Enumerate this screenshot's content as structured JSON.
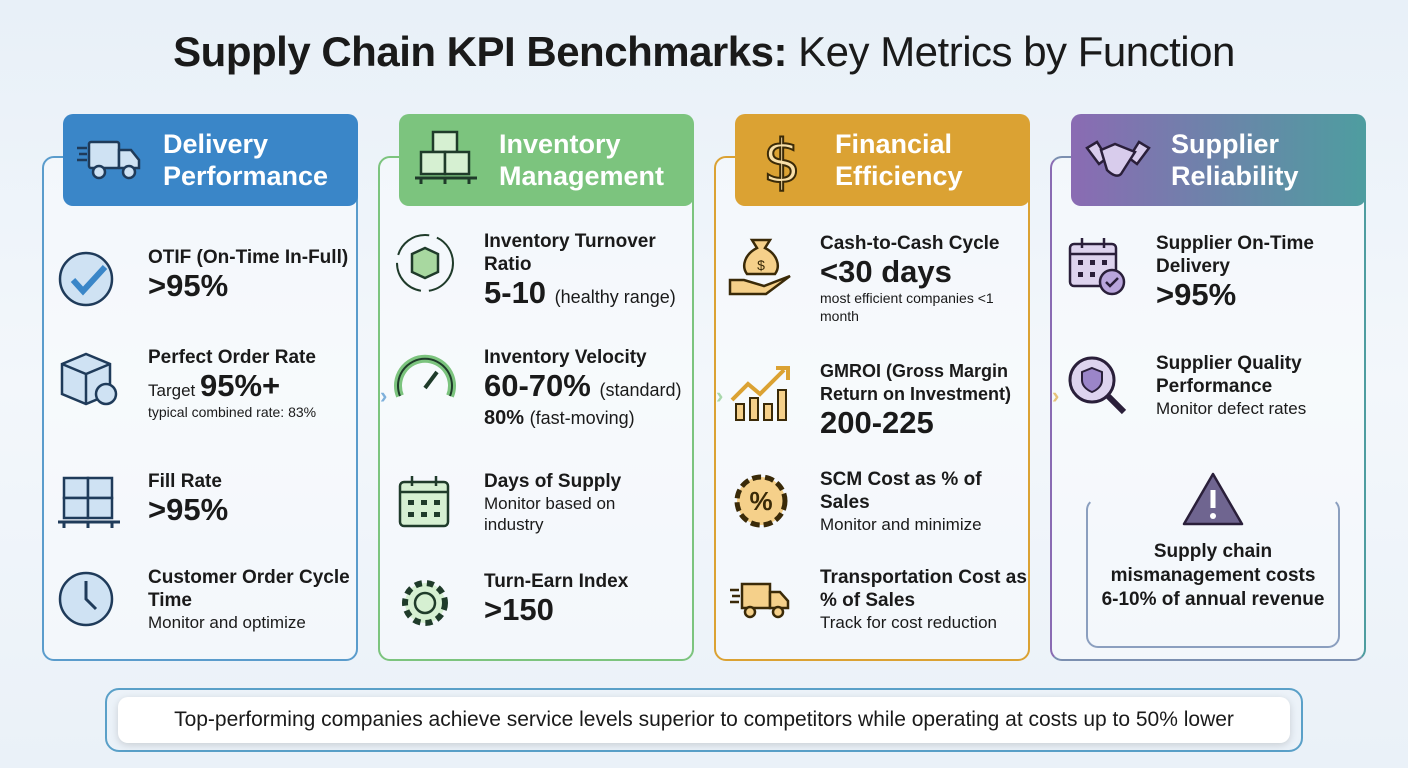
{
  "title": {
    "bold": "Supply Chain KPI Benchmarks:",
    "regular": " Key Metrics by Function"
  },
  "colors": {
    "delivery": "#3a86c8",
    "inventory": "#7cc47e",
    "financial": "#dba233",
    "supplier_start": "#8a6bb3",
    "supplier_end": "#4e9da0"
  },
  "columns": [
    {
      "title": "Delivery Performance",
      "icon": "truck-icon",
      "items": [
        {
          "icon": "check-circle-icon",
          "label": "OTIF (On-Time In-Full)",
          "value": ">95%"
        },
        {
          "icon": "box-award-icon",
          "label": "Perfect Order Rate",
          "prefix": "Target ",
          "value": "95%+",
          "note": "typical combined rate: 83%"
        },
        {
          "icon": "pallet-boxes-icon",
          "label": "Fill Rate",
          "value": ">95%"
        },
        {
          "icon": "clock-icon",
          "label": "Customer Order Cycle Time",
          "note": "Monitor and optimize"
        }
      ]
    },
    {
      "title": "Inventory Management",
      "icon": "boxes-pallet-icon",
      "items": [
        {
          "icon": "cycle-box-icon",
          "label": "Inventory Turnover Ratio",
          "value": "5-10",
          "qual": "(healthy range)"
        },
        {
          "icon": "gauge-icon",
          "label": "Inventory Velocity",
          "value": "60-70%",
          "qual": "(standard)",
          "value2": "80%",
          "qual2": "(fast-moving)"
        },
        {
          "icon": "calendar-icon",
          "label": "Days of Supply",
          "note": "Monitor based on industry"
        },
        {
          "icon": "gear-icon",
          "label": "Turn-Earn Index",
          "value": ">150"
        }
      ]
    },
    {
      "title": "Financial Efficiency",
      "icon": "dollar-icon",
      "items": [
        {
          "icon": "money-bag-hand-icon",
          "label": "Cash-to-Cash Cycle",
          "value": "<30 days",
          "note": "most efficient companies <1 month"
        },
        {
          "icon": "growth-chart-icon",
          "label": "GMROI (Gross Margin Return on Investment)",
          "value": "200-225"
        },
        {
          "icon": "percent-badge-icon",
          "label": "SCM Cost as % of Sales",
          "note": "Monitor and minimize"
        },
        {
          "icon": "truck-icon",
          "label": "Transportation Cost as % of Sales",
          "note": "Track for cost reduction"
        }
      ]
    },
    {
      "title": "Supplier Reliability",
      "icon": "handshake-icon",
      "items": [
        {
          "icon": "calendar-check-icon",
          "label": "Supplier On-Time Delivery",
          "value": ">95%"
        },
        {
          "icon": "magnifier-shield-icon",
          "label": "Supplier Quality Performance",
          "note": "Monitor defect rates"
        }
      ]
    }
  ],
  "warning": {
    "icon": "warning-icon",
    "text": "Supply chain mismanagement costs 6-10% of annual revenue"
  },
  "banner": "Top-performing companies achieve service levels superior to competitors while operating at costs up to 50% lower",
  "arrow": "›"
}
